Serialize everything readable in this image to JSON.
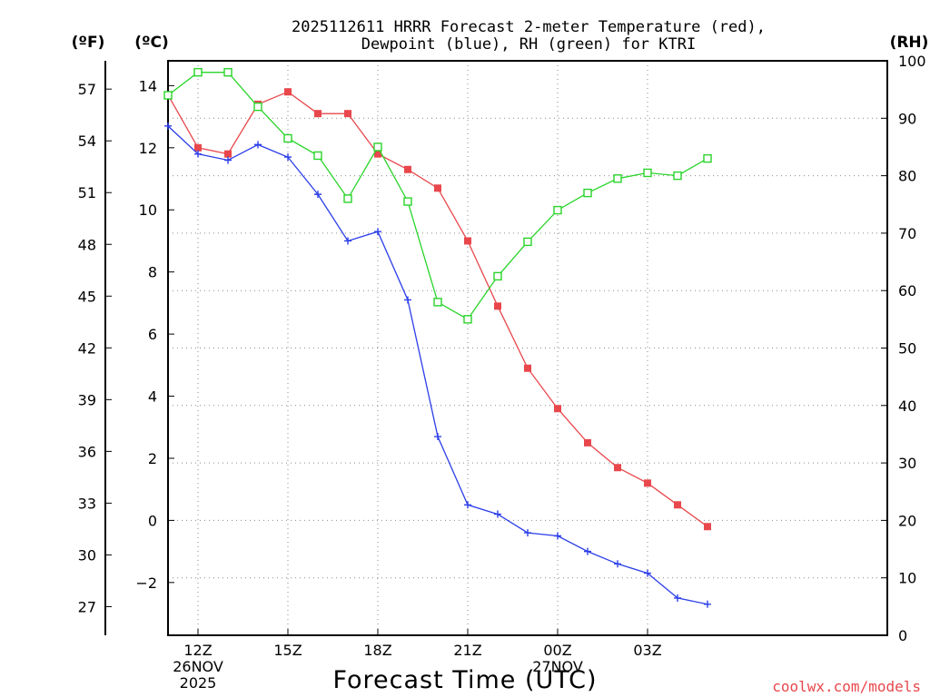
{
  "chart_data": {
    "type": "line",
    "title_line1": "2025112611 HRRR Forecast 2-meter Temperature (red),",
    "title_line2": "Dewpoint (blue), RH (green) for KTRI",
    "unit_f": "(ºF)",
    "unit_c": "(ºC)",
    "unit_rh": "(RH)",
    "xlabel": "Forecast Time (UTC)",
    "credit": "coolwx.com/models",
    "x_range_hours": [
      11,
      35
    ],
    "x_ticks": [
      {
        "hour": 12,
        "lines": [
          "12Z",
          "26NOV",
          "2025"
        ]
      },
      {
        "hour": 15,
        "lines": [
          "15Z"
        ]
      },
      {
        "hour": 18,
        "lines": [
          "18Z"
        ]
      },
      {
        "hour": 21,
        "lines": [
          "21Z"
        ]
      },
      {
        "hour": 24,
        "lines": [
          "00Z",
          "27NOV"
        ]
      },
      {
        "hour": 27,
        "lines": [
          "03Z"
        ]
      }
    ],
    "y_left_c_range": [
      -3.7,
      14.8
    ],
    "y_left_c_ticks": [
      "14",
      "12",
      "10",
      "8",
      "6",
      "4",
      "2",
      "0",
      "−2"
    ],
    "y_left_c_tick_values": [
      14,
      12,
      10,
      8,
      6,
      4,
      2,
      0,
      -2
    ],
    "y_left_f_ticks": [
      "57",
      "54",
      "51",
      "48",
      "45",
      "42",
      "39",
      "36",
      "33",
      "30",
      "27"
    ],
    "y_left_f_tick_values": [
      57,
      54,
      51,
      48,
      45,
      42,
      39,
      36,
      33,
      30,
      27
    ],
    "y_right_rh_range": [
      0,
      100
    ],
    "y_right_rh_ticks": [
      "100",
      "90",
      "80",
      "70",
      "60",
      "50",
      "40",
      "30",
      "20",
      "10",
      "0"
    ],
    "y_right_rh_tick_values": [
      100,
      90,
      80,
      70,
      60,
      50,
      40,
      30,
      20,
      10,
      0
    ],
    "series": [
      {
        "name": "2-meter Temperature",
        "axis": "celsius",
        "color": "#e8474c",
        "marker": "filled-square",
        "x": [
          11,
          12,
          13,
          14,
          15,
          16,
          17,
          18,
          19,
          20,
          21,
          22,
          23,
          24,
          25,
          26,
          27,
          28,
          29
        ],
        "values": [
          13.7,
          12.0,
          11.8,
          13.4,
          13.8,
          13.1,
          13.1,
          11.8,
          11.3,
          10.7,
          9.0,
          6.9,
          4.9,
          3.6,
          2.5,
          1.7,
          1.2,
          0.5,
          -0.2
        ]
      },
      {
        "name": "Dewpoint",
        "axis": "celsius",
        "color": "#2b3ee8",
        "marker": "plus",
        "x": [
          11,
          12,
          13,
          14,
          15,
          16,
          17,
          18,
          19,
          20,
          21,
          22,
          23,
          24,
          25,
          26,
          27,
          28,
          29
        ],
        "values": [
          12.7,
          11.8,
          11.6,
          12.1,
          11.7,
          10.5,
          9.0,
          9.3,
          7.1,
          2.7,
          0.5,
          0.2,
          -0.4,
          -0.5,
          -1.0,
          -1.4,
          -1.7,
          -2.5,
          -2.7
        ]
      },
      {
        "name": "Relative Humidity",
        "axis": "rh",
        "color": "#2ad42a",
        "marker": "open-square",
        "x": [
          11,
          12,
          13,
          14,
          15,
          16,
          17,
          18,
          19,
          20,
          21,
          22,
          23,
          24,
          25,
          26,
          27,
          28,
          29
        ],
        "values": [
          94,
          98,
          98,
          92,
          86.5,
          83.5,
          76,
          85,
          75.5,
          58,
          55,
          62.5,
          68.5,
          74,
          77,
          79.5,
          80.5,
          80,
          83
        ]
      }
    ]
  }
}
